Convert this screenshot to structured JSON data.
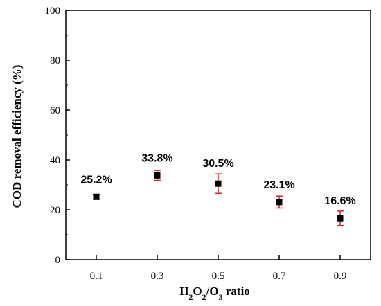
{
  "chart_data": {
    "type": "scatter",
    "x_tick_labels": [
      "0.1",
      "0.3",
      "0.5",
      "0.7",
      "0.9"
    ],
    "y_tick_labels": [
      "0",
      "20",
      "40",
      "60",
      "80",
      "100"
    ],
    "x": [
      0.1,
      0.3,
      0.5,
      0.7,
      0.9
    ],
    "y": [
      25.2,
      33.8,
      30.5,
      23.1,
      16.6
    ],
    "error": [
      1.0,
      2.0,
      3.9,
      2.4,
      2.9
    ],
    "data_labels": [
      "25.2%",
      "33.8%",
      "30.5%",
      "23.1%",
      "16.6%"
    ],
    "xlim": [
      0.0,
      1.0
    ],
    "ylim": [
      0,
      100
    ],
    "xlabel_parts": [
      "H",
      "2",
      "O",
      "2",
      "/O",
      "3",
      " ratio"
    ],
    "ylabel": "COD removal efficiency (%)",
    "grid": false,
    "marker": "square",
    "colors": {
      "marker": "#000000",
      "error_bar": "#d62728",
      "axis": "#000000"
    }
  }
}
